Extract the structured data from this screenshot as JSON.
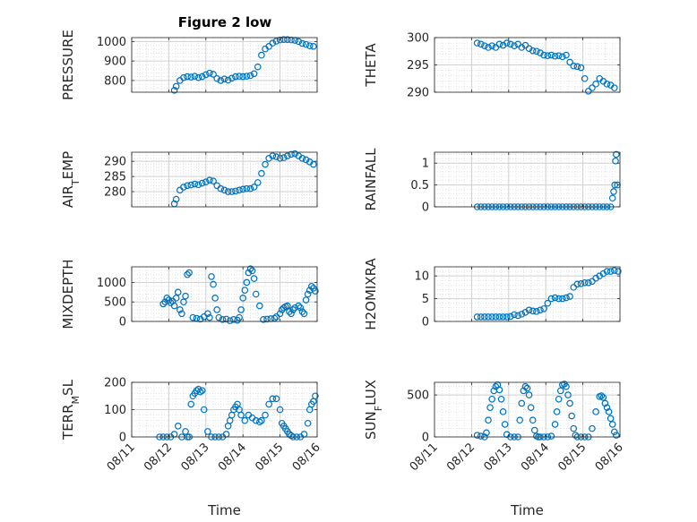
{
  "figure": {
    "title": "Figure 2 low"
  },
  "chart_data": [
    {
      "type": "scatter",
      "title": "Figure 2 low",
      "ylabel": "PRESSURE",
      "xlabel": "",
      "xlim": [
        0,
        5
      ],
      "ylim": [
        740,
        1020
      ],
      "yticks": [
        800,
        900,
        1000
      ],
      "yticklabels": [
        "800",
        "900",
        "1000"
      ],
      "xticks": [
        0,
        1,
        2,
        3,
        4,
        5
      ],
      "xticklabels": [],
      "grid": true,
      "marker": "circle",
      "color": "#0072BD",
      "x": [
        1.15,
        1.2,
        1.3,
        1.4,
        1.5,
        1.6,
        1.7,
        1.8,
        1.9,
        2.0,
        2.1,
        2.2,
        2.3,
        2.4,
        2.5,
        2.6,
        2.7,
        2.8,
        2.9,
        3.0,
        3.1,
        3.2,
        3.3,
        3.4,
        3.5,
        3.6,
        3.7,
        3.8,
        3.9,
        4.0,
        4.1,
        4.2,
        4.3,
        4.4,
        4.5,
        4.6,
        4.7,
        4.8,
        4.9
      ],
      "y": [
        750,
        770,
        800,
        815,
        820,
        818,
        822,
        815,
        820,
        830,
        838,
        832,
        810,
        800,
        808,
        802,
        812,
        820,
        822,
        820,
        822,
        825,
        835,
        870,
        930,
        962,
        975,
        992,
        1002,
        1008,
        1010,
        1010,
        1008,
        1006,
        1000,
        990,
        985,
        978,
        975
      ]
    },
    {
      "type": "scatter",
      "ylabel": "THETA",
      "xlabel": "",
      "xlim": [
        0,
        5
      ],
      "ylim": [
        290,
        300
      ],
      "yticks": [
        290,
        295,
        300
      ],
      "yticklabels": [
        "290",
        "295",
        "300"
      ],
      "xticks": [
        0,
        1,
        2,
        3,
        4,
        5
      ],
      "xticklabels": [],
      "grid": true,
      "marker": "circle",
      "color": "#0072BD",
      "x": [
        1.15,
        1.25,
        1.35,
        1.45,
        1.55,
        1.65,
        1.75,
        1.85,
        1.95,
        2.05,
        2.15,
        2.25,
        2.35,
        2.45,
        2.55,
        2.65,
        2.75,
        2.85,
        2.95,
        3.05,
        3.15,
        3.25,
        3.35,
        3.45,
        3.55,
        3.65,
        3.75,
        3.85,
        3.95,
        4.05,
        4.15,
        4.25,
        4.35,
        4.45,
        4.55,
        4.65,
        4.75,
        4.85
      ],
      "y": [
        299,
        298.8,
        298.5,
        298.2,
        298.5,
        298.2,
        298.8,
        298.6,
        299,
        298.8,
        298.5,
        298.8,
        298.2,
        298.6,
        298,
        297.6,
        297.5,
        297.2,
        296.8,
        296.7,
        296.8,
        296.6,
        296.7,
        296.5,
        296.8,
        295.5,
        294.8,
        294.7,
        294.5,
        292.5,
        290.2,
        290.8,
        291.5,
        292.5,
        292,
        291.5,
        291.3,
        290.8
      ]
    },
    {
      "type": "scatter",
      "ylabel": "AIR_TEMP",
      "xlabel": "",
      "xlim": [
        0,
        5
      ],
      "ylim": [
        275,
        293
      ],
      "yticks": [
        280,
        285,
        290
      ],
      "yticklabels": [
        "280",
        "285",
        "290"
      ],
      "xticks": [
        0,
        1,
        2,
        3,
        4,
        5
      ],
      "xticklabels": [],
      "grid": true,
      "marker": "circle",
      "color": "#0072BD",
      "x": [
        1.15,
        1.2,
        1.3,
        1.4,
        1.5,
        1.6,
        1.7,
        1.8,
        1.9,
        2.0,
        2.1,
        2.2,
        2.3,
        2.4,
        2.5,
        2.6,
        2.7,
        2.8,
        2.9,
        3.0,
        3.1,
        3.2,
        3.3,
        3.4,
        3.5,
        3.6,
        3.7,
        3.8,
        3.9,
        4.0,
        4.1,
        4.2,
        4.3,
        4.4,
        4.5,
        4.6,
        4.7,
        4.8,
        4.9
      ],
      "y": [
        276,
        277.5,
        280.5,
        281.5,
        282,
        282.2,
        282.5,
        282.3,
        282.8,
        283.2,
        283.8,
        283.5,
        282,
        281,
        280.5,
        280,
        280,
        280.2,
        280.5,
        280.8,
        281,
        281,
        281.5,
        283,
        286,
        289,
        291,
        291.8,
        291.5,
        291,
        291.2,
        291.8,
        292.3,
        292.5,
        291.8,
        291,
        290.5,
        289.8,
        289
      ]
    },
    {
      "type": "scatter",
      "ylabel": "RAINFALL",
      "xlabel": "",
      "xlim": [
        0,
        5
      ],
      "ylim": [
        0,
        1.25
      ],
      "yticks": [
        0,
        0.5,
        1
      ],
      "yticklabels": [
        "0",
        "0.5",
        "1"
      ],
      "xticks": [
        0,
        1,
        2,
        3,
        4,
        5
      ],
      "xticklabels": [],
      "grid": true,
      "marker": "circle",
      "color": "#0072BD",
      "x": [
        1.15,
        1.25,
        1.35,
        1.45,
        1.55,
        1.65,
        1.75,
        1.85,
        1.95,
        2.05,
        2.15,
        2.25,
        2.35,
        2.45,
        2.55,
        2.65,
        2.75,
        2.85,
        2.95,
        3.05,
        3.15,
        3.25,
        3.35,
        3.45,
        3.55,
        3.65,
        3.75,
        3.85,
        3.95,
        4.05,
        4.15,
        4.25,
        4.35,
        4.45,
        4.55,
        4.65,
        4.75,
        4.8,
        4.83,
        4.86,
        4.88,
        4.9,
        4.93
      ],
      "y": [
        0,
        0,
        0,
        0,
        0,
        0,
        0,
        0,
        0,
        0,
        0,
        0,
        0,
        0,
        0,
        0,
        0,
        0,
        0,
        0,
        0,
        0,
        0,
        0,
        0,
        0,
        0,
        0,
        0,
        0,
        0,
        0,
        0,
        0,
        0,
        0,
        0,
        0.2,
        0.35,
        0.5,
        1.05,
        1.2,
        0.5
      ]
    },
    {
      "type": "scatter",
      "ylabel": "MIXDEPTH",
      "xlabel": "",
      "xlim": [
        0,
        5
      ],
      "ylim": [
        0,
        1400
      ],
      "yticks": [
        0,
        500,
        1000
      ],
      "yticklabels": [
        "0",
        "500",
        "1000"
      ],
      "xticks": [
        0,
        1,
        2,
        3,
        4,
        5
      ],
      "xticklabels": [],
      "grid": true,
      "marker": "circle",
      "color": "#0072BD",
      "x": [
        0.85,
        0.9,
        0.95,
        1.0,
        1.05,
        1.1,
        1.15,
        1.2,
        1.25,
        1.3,
        1.35,
        1.4,
        1.45,
        1.5,
        1.55,
        1.65,
        1.75,
        1.85,
        1.95,
        2.05,
        2.1,
        2.15,
        2.2,
        2.25,
        2.3,
        2.35,
        2.45,
        2.55,
        2.65,
        2.75,
        2.85,
        2.9,
        2.95,
        3.0,
        3.05,
        3.1,
        3.15,
        3.2,
        3.25,
        3.3,
        3.35,
        3.45,
        3.55,
        3.65,
        3.75,
        3.85,
        3.9,
        4.0,
        4.05,
        4.1,
        4.15,
        4.2,
        4.25,
        4.3,
        4.35,
        4.4,
        4.5,
        4.55,
        4.6,
        4.65,
        4.7,
        4.75,
        4.8,
        4.85,
        4.9,
        4.95
      ],
      "y": [
        450,
        500,
        600,
        550,
        480,
        520,
        400,
        600,
        750,
        300,
        200,
        500,
        650,
        1200,
        1250,
        100,
        80,
        60,
        120,
        200,
        100,
        1150,
        950,
        600,
        300,
        100,
        50,
        60,
        20,
        50,
        30,
        100,
        300,
        600,
        800,
        1000,
        1250,
        1350,
        1300,
        1100,
        700,
        400,
        50,
        60,
        70,
        80,
        120,
        200,
        300,
        350,
        380,
        400,
        250,
        200,
        300,
        350,
        400,
        350,
        250,
        200,
        550,
        700,
        800,
        900,
        850,
        780
      ]
    },
    {
      "type": "scatter",
      "ylabel": "H2OMIXRA",
      "xlabel": "",
      "xlim": [
        0,
        5
      ],
      "ylim": [
        0,
        12
      ],
      "yticks": [
        0,
        5,
        10
      ],
      "yticklabels": [
        "0",
        "5",
        "10"
      ],
      "xticks": [
        0,
        1,
        2,
        3,
        4,
        5
      ],
      "xticklabels": [],
      "grid": true,
      "marker": "circle",
      "color": "#0072BD",
      "x": [
        1.15,
        1.25,
        1.35,
        1.45,
        1.55,
        1.65,
        1.75,
        1.85,
        1.95,
        2.05,
        2.15,
        2.25,
        2.35,
        2.45,
        2.55,
        2.65,
        2.75,
        2.85,
        2.95,
        3.05,
        3.15,
        3.25,
        3.35,
        3.45,
        3.55,
        3.65,
        3.75,
        3.85,
        3.95,
        4.05,
        4.15,
        4.25,
        4.35,
        4.45,
        4.55,
        4.65,
        4.75,
        4.85,
        4.95
      ],
      "y": [
        1,
        1,
        1,
        1,
        1,
        1,
        1,
        1,
        1,
        1.1,
        1.5,
        1.3,
        1.6,
        2.0,
        2.5,
        2.3,
        2.2,
        2.5,
        2.8,
        4.0,
        5.0,
        5.2,
        5.0,
        5.0,
        5.2,
        5.5,
        7.5,
        8.2,
        8.3,
        8.5,
        8.5,
        8.8,
        9.5,
        10.0,
        10.5,
        11.0,
        11.0,
        11.2,
        11.0
      ]
    },
    {
      "type": "scatter",
      "ylabel": "TERR_MSL",
      "xlabel": "Time",
      "xlim": [
        0,
        5
      ],
      "ylim": [
        0,
        200
      ],
      "yticks": [
        0,
        100,
        200
      ],
      "yticklabels": [
        "0",
        "100",
        "200"
      ],
      "xticks": [
        0,
        1,
        2,
        3,
        4,
        5
      ],
      "xticklabels": [
        "08/11",
        "08/12",
        "08/13",
        "08/14",
        "08/15",
        "08/16"
      ],
      "grid": true,
      "marker": "circle",
      "color": "#0072BD",
      "x": [
        0.75,
        0.85,
        0.95,
        1.05,
        1.15,
        1.25,
        1.35,
        1.45,
        1.5,
        1.55,
        1.6,
        1.65,
        1.7,
        1.75,
        1.8,
        1.85,
        1.9,
        1.95,
        2.05,
        2.15,
        2.25,
        2.35,
        2.45,
        2.55,
        2.6,
        2.65,
        2.7,
        2.75,
        2.8,
        2.85,
        2.9,
        2.95,
        3.05,
        3.15,
        3.25,
        3.35,
        3.45,
        3.5,
        3.6,
        3.7,
        3.8,
        3.9,
        4.0,
        4.05,
        4.1,
        4.15,
        4.2,
        4.25,
        4.3,
        4.35,
        4.45,
        4.55,
        4.65,
        4.75,
        4.8,
        4.85,
        4.9,
        4.95
      ],
      "y": [
        0,
        0,
        0,
        0,
        10,
        40,
        0,
        20,
        0,
        0,
        120,
        150,
        160,
        170,
        175,
        165,
        170,
        100,
        20,
        0,
        0,
        0,
        0,
        10,
        40,
        60,
        80,
        100,
        110,
        120,
        100,
        80,
        60,
        80,
        70,
        60,
        55,
        60,
        80,
        120,
        140,
        140,
        100,
        50,
        40,
        30,
        20,
        10,
        5,
        0,
        0,
        0,
        10,
        50,
        100,
        120,
        130,
        150
      ]
    },
    {
      "type": "scatter",
      "ylabel": "SUN_FLUX",
      "xlabel": "Time",
      "xlim": [
        0,
        5
      ],
      "ylim": [
        0,
        650
      ],
      "yticks": [
        0,
        500
      ],
      "yticklabels": [
        "0",
        "500"
      ],
      "xticks": [
        0,
        1,
        2,
        3,
        4,
        5
      ],
      "xticklabels": [
        "08/11",
        "08/12",
        "08/13",
        "08/14",
        "08/15",
        "08/16"
      ],
      "grid": true,
      "marker": "circle",
      "color": "#0072BD",
      "x": [
        1.15,
        1.25,
        1.35,
        1.4,
        1.45,
        1.5,
        1.55,
        1.6,
        1.65,
        1.7,
        1.75,
        1.8,
        1.85,
        1.9,
        1.95,
        2.05,
        2.15,
        2.25,
        2.3,
        2.35,
        2.4,
        2.45,
        2.5,
        2.55,
        2.6,
        2.65,
        2.7,
        2.75,
        2.8,
        2.85,
        2.95,
        3.05,
        3.15,
        3.25,
        3.3,
        3.35,
        3.4,
        3.45,
        3.5,
        3.55,
        3.6,
        3.65,
        3.7,
        3.75,
        3.8,
        3.85,
        3.95,
        4.05,
        4.15,
        4.25,
        4.35,
        4.45,
        4.5,
        4.55,
        4.6,
        4.65,
        4.7,
        4.75,
        4.8,
        4.85,
        4.9
      ],
      "y": [
        20,
        10,
        0,
        50,
        200,
        350,
        450,
        550,
        600,
        620,
        560,
        450,
        300,
        150,
        30,
        0,
        0,
        0,
        200,
        400,
        550,
        600,
        580,
        500,
        350,
        200,
        80,
        10,
        0,
        0,
        0,
        0,
        10,
        150,
        300,
        450,
        550,
        620,
        630,
        600,
        500,
        400,
        250,
        100,
        20,
        0,
        0,
        0,
        0,
        100,
        300,
        480,
        490,
        470,
        400,
        350,
        300,
        220,
        150,
        60,
        20
      ]
    }
  ]
}
